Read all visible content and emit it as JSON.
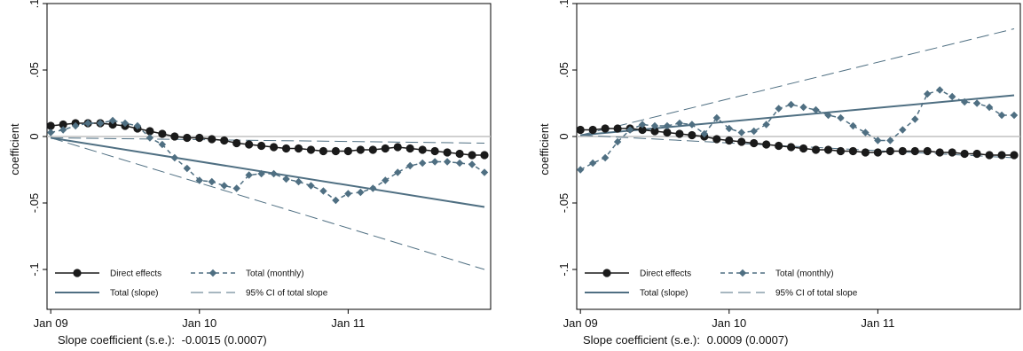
{
  "colors": {
    "direct": "#1a1a1a",
    "total": "#4f6f82",
    "zero": "#c0c0c0",
    "frame": "#000000"
  },
  "chart_data": [
    {
      "type": "line",
      "ylabel": "coefficient",
      "ylim": [
        -0.13,
        0.1
      ],
      "yticks": [
        -0.1,
        -0.05,
        0,
        0.05,
        0.1
      ],
      "ytick_labels": [
        "-.1",
        "-.05",
        "0",
        ".05",
        ".1"
      ],
      "xlim": [
        -0.3,
        35.5
      ],
      "xticks": [
        0,
        12,
        24
      ],
      "xtick_labels": [
        "Jan 09",
        "Jan 10",
        "Jan 11"
      ],
      "grid": false,
      "legend_position": "bottom-inside",
      "series": [
        {
          "name": "Direct effects",
          "style": "solid-circle",
          "x": [
            0,
            1,
            2,
            3,
            4,
            5,
            6,
            7,
            8,
            9,
            10,
            11,
            12,
            13,
            14,
            15,
            16,
            17,
            18,
            19,
            20,
            21,
            22,
            23,
            24,
            25,
            26,
            27,
            28,
            29,
            30,
            31,
            32,
            33,
            34,
            35
          ],
          "values": [
            0.008,
            0.009,
            0.01,
            0.01,
            0.01,
            0.009,
            0.008,
            0.006,
            0.004,
            0.002,
            0.0,
            -0.001,
            -0.001,
            -0.002,
            -0.003,
            -0.005,
            -0.006,
            -0.007,
            -0.008,
            -0.009,
            -0.009,
            -0.01,
            -0.011,
            -0.011,
            -0.011,
            -0.01,
            -0.01,
            -0.009,
            -0.008,
            -0.009,
            -0.01,
            -0.011,
            -0.012,
            -0.013,
            -0.014,
            -0.014
          ]
        },
        {
          "name": "Total (monthly)",
          "style": "dash-diamond",
          "x": [
            0,
            1,
            2,
            3,
            4,
            5,
            6,
            7,
            8,
            9,
            10,
            11,
            12,
            13,
            14,
            15,
            16,
            17,
            18,
            19,
            20,
            21,
            22,
            23,
            24,
            25,
            26,
            27,
            28,
            29,
            30,
            31,
            32,
            33,
            34,
            35
          ],
          "values": [
            0.003,
            0.005,
            0.008,
            0.01,
            0.01,
            0.012,
            0.01,
            0.008,
            -0.001,
            -0.006,
            -0.016,
            -0.024,
            -0.033,
            -0.034,
            -0.037,
            -0.039,
            -0.029,
            -0.028,
            -0.028,
            -0.032,
            -0.034,
            -0.037,
            -0.041,
            -0.048,
            -0.043,
            -0.042,
            -0.039,
            -0.033,
            -0.027,
            -0.022,
            -0.02,
            -0.019,
            -0.019,
            -0.02,
            -0.021,
            -0.027
          ]
        },
        {
          "name": "Total (slope)",
          "style": "solid",
          "x": [
            0,
            35
          ],
          "values": [
            -0.001,
            -0.053
          ]
        },
        {
          "name": "95% CI of total slope",
          "style": "long-dash",
          "x": [
            0,
            35
          ],
          "values": [
            -0.001,
            -0.1
          ],
          "x_upper": [
            0,
            35
          ],
          "values_upper": [
            -0.001,
            -0.005
          ]
        }
      ],
      "footnote_label": "Slope coefficient (s.e.):",
      "footnote_value": "-0.0015 (0.0007)"
    },
    {
      "type": "line",
      "ylabel": "coefficient",
      "ylim": [
        -0.13,
        0.1
      ],
      "yticks": [
        -0.1,
        -0.05,
        0,
        0.05,
        0.1
      ],
      "ytick_labels": [
        "-.1",
        "-.05",
        "0",
        ".05",
        ".1"
      ],
      "xlim": [
        -0.3,
        35.5
      ],
      "xticks": [
        0,
        12,
        24
      ],
      "xtick_labels": [
        "Jan 09",
        "Jan 10",
        "Jan 11"
      ],
      "grid": false,
      "legend_position": "bottom-inside",
      "series": [
        {
          "name": "Direct effects",
          "style": "solid-circle",
          "x": [
            0,
            1,
            2,
            3,
            4,
            5,
            6,
            7,
            8,
            9,
            10,
            11,
            12,
            13,
            14,
            15,
            16,
            17,
            18,
            19,
            20,
            21,
            22,
            23,
            24,
            25,
            26,
            27,
            28,
            29,
            30,
            31,
            32,
            33,
            34,
            35
          ],
          "values": [
            0.005,
            0.005,
            0.006,
            0.006,
            0.006,
            0.005,
            0.004,
            0.003,
            0.002,
            0.001,
            0.0,
            -0.002,
            -0.003,
            -0.004,
            -0.005,
            -0.006,
            -0.007,
            -0.008,
            -0.009,
            -0.01,
            -0.01,
            -0.011,
            -0.011,
            -0.012,
            -0.012,
            -0.011,
            -0.011,
            -0.011,
            -0.011,
            -0.012,
            -0.012,
            -0.013,
            -0.013,
            -0.014,
            -0.014,
            -0.014
          ]
        },
        {
          "name": "Total (monthly)",
          "style": "dash-diamond",
          "x": [
            0,
            1,
            2,
            3,
            4,
            5,
            6,
            7,
            8,
            9,
            10,
            11,
            12,
            13,
            14,
            15,
            16,
            17,
            18,
            19,
            20,
            21,
            22,
            23,
            24,
            25,
            26,
            27,
            28,
            29,
            30,
            31,
            32,
            33,
            34,
            35
          ],
          "values": [
            -0.025,
            -0.02,
            -0.016,
            -0.004,
            0.005,
            0.009,
            0.008,
            0.008,
            0.01,
            0.009,
            0.002,
            0.014,
            0.006,
            0.003,
            0.004,
            0.009,
            0.021,
            0.024,
            0.022,
            0.02,
            0.016,
            0.014,
            0.008,
            0.003,
            -0.003,
            -0.003,
            0.005,
            0.013,
            0.032,
            0.035,
            0.03,
            0.026,
            0.025,
            0.022,
            0.016,
            0.016
          ]
        },
        {
          "name": "Total (slope)",
          "style": "solid",
          "x": [
            0,
            35
          ],
          "values": [
            0.001,
            0.031
          ]
        },
        {
          "name": "95% CI of total slope",
          "style": "long-dash",
          "x": [
            0,
            35
          ],
          "values": [
            0.001,
            0.081
          ],
          "x_upper": [
            0,
            35
          ],
          "values_upper": [
            0.001,
            -0.016
          ]
        }
      ],
      "footnote_label": "Slope coefficient (s.e.):",
      "footnote_value": "0.0009 (0.0007)"
    }
  ]
}
